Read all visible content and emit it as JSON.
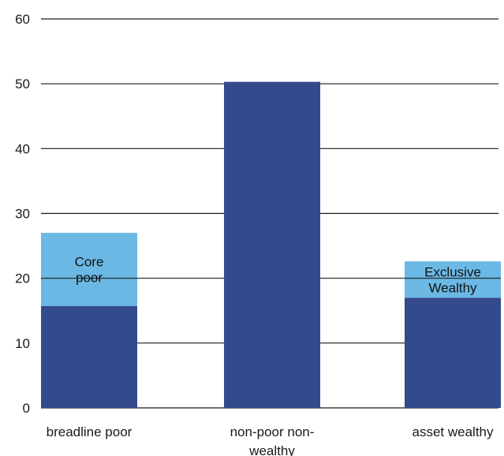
{
  "chart_data": {
    "type": "bar",
    "stacked": true,
    "title": "",
    "xlabel": "",
    "ylabel": "",
    "ylim": [
      0,
      60
    ],
    "yticks": [
      0,
      10,
      20,
      30,
      40,
      50,
      60
    ],
    "grid": true,
    "legend": "none",
    "categories": [
      {
        "lines": [
          "breadline poor"
        ]
      },
      {
        "lines": [
          "non-poor non-",
          "wealthy"
        ]
      },
      {
        "lines": [
          "asset wealthy"
        ]
      }
    ],
    "series": [
      {
        "color": "#334a8d",
        "values": [
          15.7,
          50.3,
          17.0
        ]
      },
      {
        "color": "#6bb8e4",
        "values": [
          11.3,
          0,
          5.6
        ]
      }
    ],
    "segment_labels": [
      {
        "category": 0,
        "series": 1,
        "lines": [
          "Core",
          "poor"
        ]
      },
      {
        "category": 2,
        "series": 1,
        "lines": [
          "Exclusive",
          "Wealthy"
        ]
      }
    ]
  }
}
